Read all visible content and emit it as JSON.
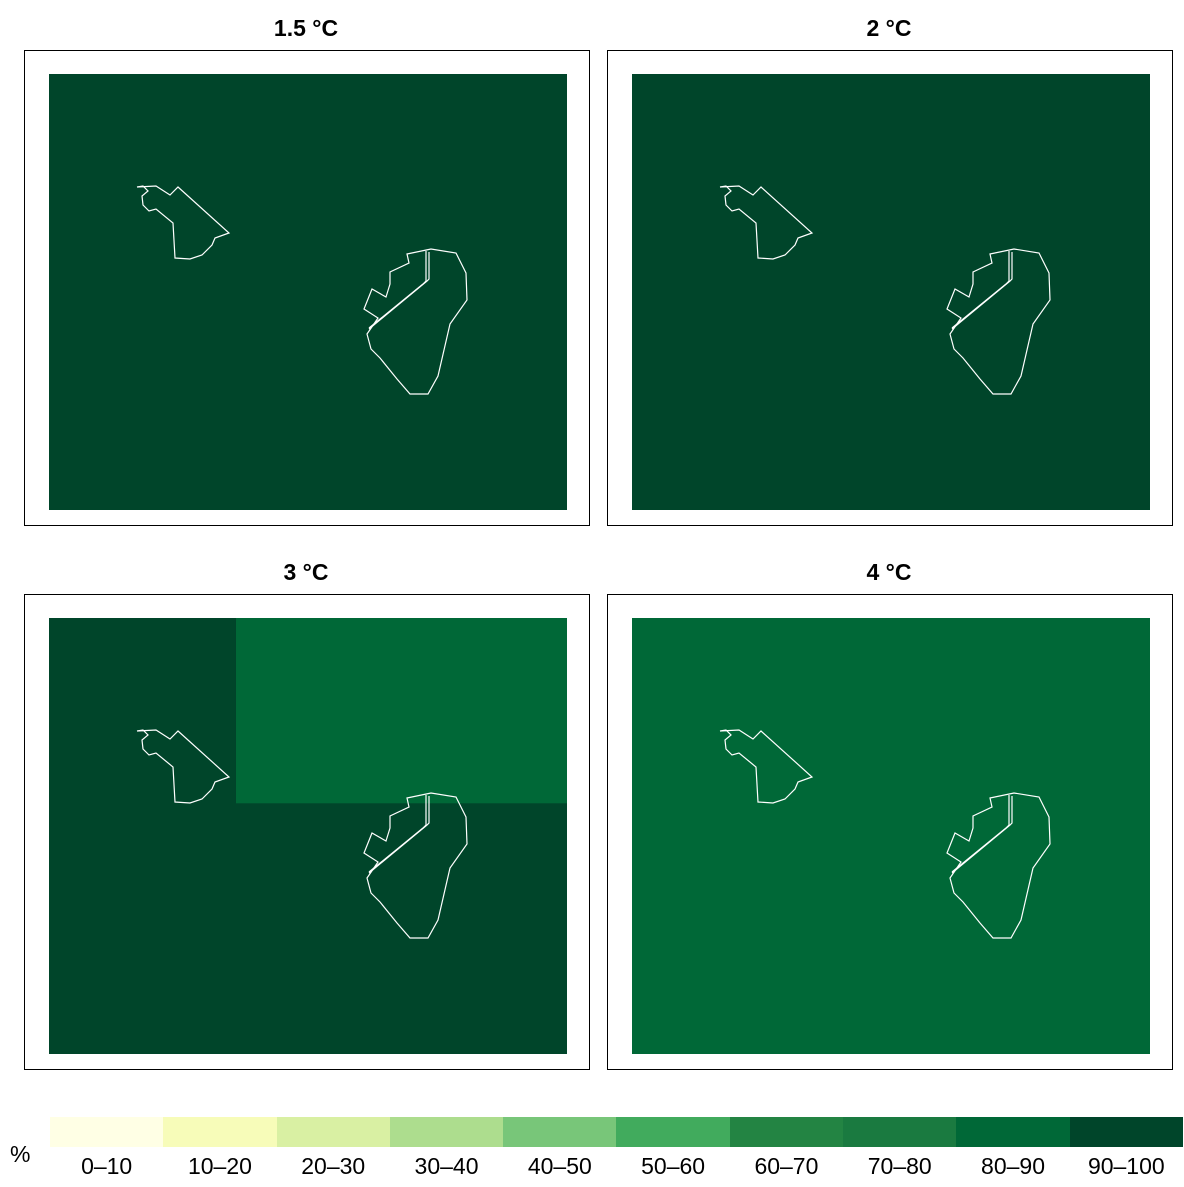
{
  "panels": [
    {
      "title": "1.5 °C",
      "cells": [
        {
          "color": "#00452a",
          "x": 0,
          "y": 0,
          "w": 1,
          "h": 1
        }
      ]
    },
    {
      "title": "2 °C",
      "cells": [
        {
          "color": "#00452a",
          "x": 0,
          "y": 0,
          "w": 1,
          "h": 1
        }
      ]
    },
    {
      "title": "3 °C",
      "cells": [
        {
          "color": "#00452a",
          "x": 0,
          "y": 0,
          "w": 1,
          "h": 1
        },
        {
          "color": "#006837",
          "x": 0.361,
          "y": 0,
          "w": 0.639,
          "h": 0.425
        }
      ]
    },
    {
      "title": "4 °C",
      "cells": [
        {
          "color": "#006837",
          "x": 0,
          "y": 0,
          "w": 1,
          "h": 1
        }
      ]
    }
  ],
  "legend": {
    "unit": "%",
    "classes": [
      {
        "label": "0–10",
        "color": "#ffffe5"
      },
      {
        "label": "10–20",
        "color": "#f7fcb9"
      },
      {
        "label": "20–30",
        "color": "#d9f0a3"
      },
      {
        "label": "30–40",
        "color": "#addd8e"
      },
      {
        "label": "40–50",
        "color": "#78c679"
      },
      {
        "label": "50–60",
        "color": "#41ab5d"
      },
      {
        "label": "60–70",
        "color": "#238443"
      },
      {
        "label": "70–80",
        "color": "#1a7a40"
      },
      {
        "label": "80–90",
        "color": "#006837"
      },
      {
        "label": "90–100",
        "color": "#00452a"
      }
    ]
  }
}
